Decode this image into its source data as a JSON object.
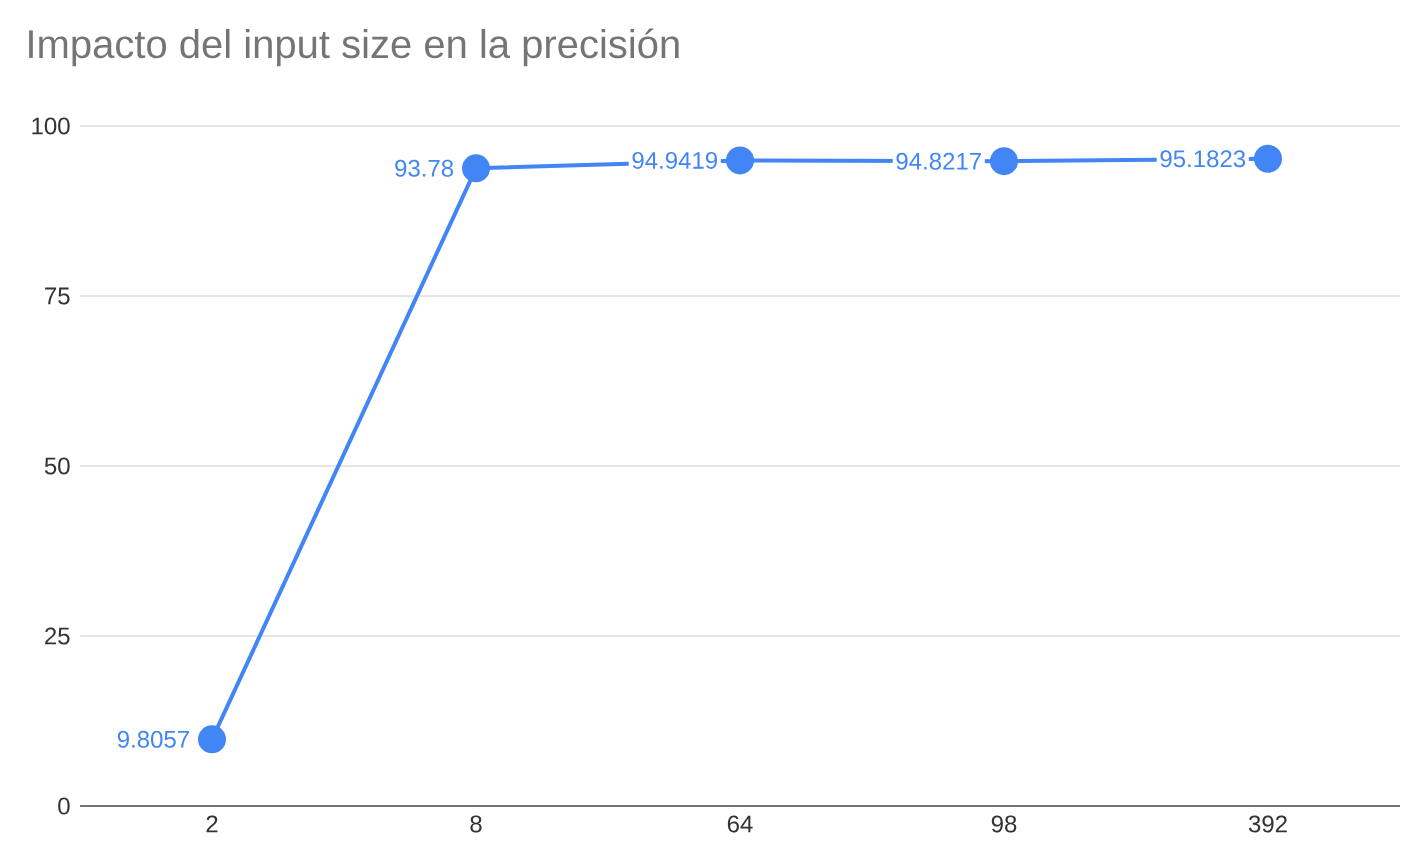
{
  "chart_data": {
    "type": "line",
    "title": "Impacto del input size en la precisión",
    "categories": [
      "2",
      "8",
      "64",
      "98",
      "392"
    ],
    "series": [
      {
        "color": "#4285f4",
        "values": [
          9.8057,
          93.78,
          94.9419,
          94.8217,
          95.1823
        ]
      }
    ],
    "ylim": [
      0,
      100
    ],
    "yticks": [
      0,
      25,
      50,
      75,
      100
    ],
    "grid": "y",
    "marker": "circle",
    "line_style": "solid",
    "data_labels": true
  }
}
